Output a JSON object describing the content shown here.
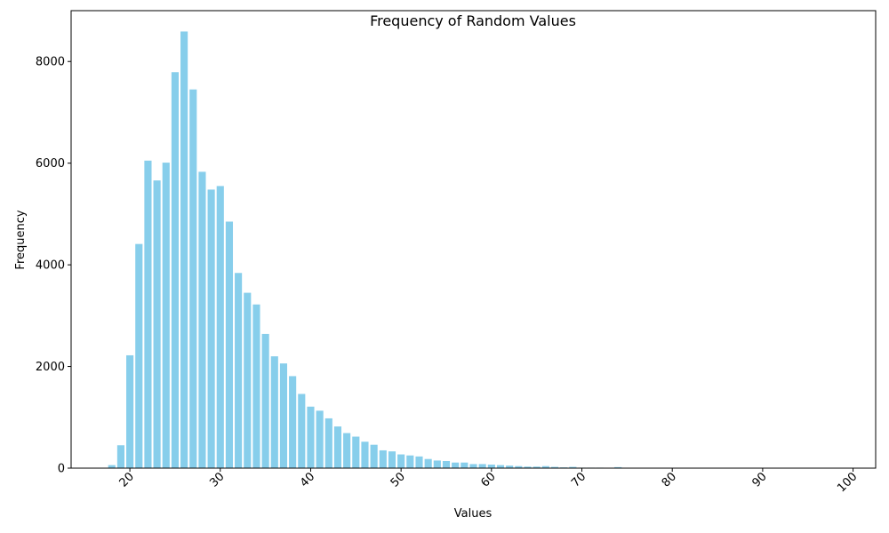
{
  "chart_data": {
    "type": "bar",
    "title": "Frequency of Random Values",
    "xlabel": "Values",
    "ylabel": "Frequency",
    "xlim": [
      13.5,
      102.5
    ],
    "ylim": [
      0,
      9000
    ],
    "x_ticks": [
      20,
      30,
      40,
      50,
      60,
      70,
      80,
      90,
      100
    ],
    "y_ticks": [
      0,
      2000,
      4000,
      6000,
      8000
    ],
    "grid": false,
    "legend": "none",
    "bar_color": "#87ceeb",
    "x": [
      18,
      19,
      20,
      21,
      22,
      23,
      24,
      25,
      26,
      27,
      28,
      29,
      30,
      31,
      32,
      33,
      34,
      35,
      36,
      37,
      38,
      39,
      40,
      41,
      42,
      43,
      44,
      45,
      46,
      47,
      48,
      49,
      50,
      51,
      52,
      53,
      54,
      55,
      56,
      57,
      58,
      59,
      60,
      61,
      62,
      63,
      64,
      65,
      66,
      67,
      68,
      69,
      70,
      71,
      72,
      73,
      74,
      75,
      76,
      77,
      78,
      79,
      80,
      81,
      82,
      83,
      84,
      85,
      86,
      87,
      88,
      89,
      90,
      91,
      92,
      93,
      94,
      95,
      96,
      97,
      98,
      99
    ],
    "values": [
      60,
      450,
      2220,
      4410,
      6050,
      5660,
      6010,
      7790,
      8590,
      7450,
      5830,
      5480,
      5550,
      4850,
      3840,
      3450,
      3220,
      2640,
      2200,
      2060,
      1810,
      1460,
      1210,
      1130,
      980,
      820,
      690,
      620,
      520,
      460,
      350,
      330,
      270,
      250,
      230,
      180,
      150,
      140,
      110,
      110,
      80,
      80,
      70,
      60,
      50,
      40,
      30,
      30,
      40,
      25,
      15,
      25,
      10,
      10,
      10,
      8,
      20,
      6,
      5,
      4,
      4,
      3,
      3,
      3,
      2,
      2,
      2,
      2,
      2,
      1,
      1,
      1,
      1,
      1,
      1,
      1,
      1,
      1,
      1,
      1,
      1,
      1
    ]
  }
}
